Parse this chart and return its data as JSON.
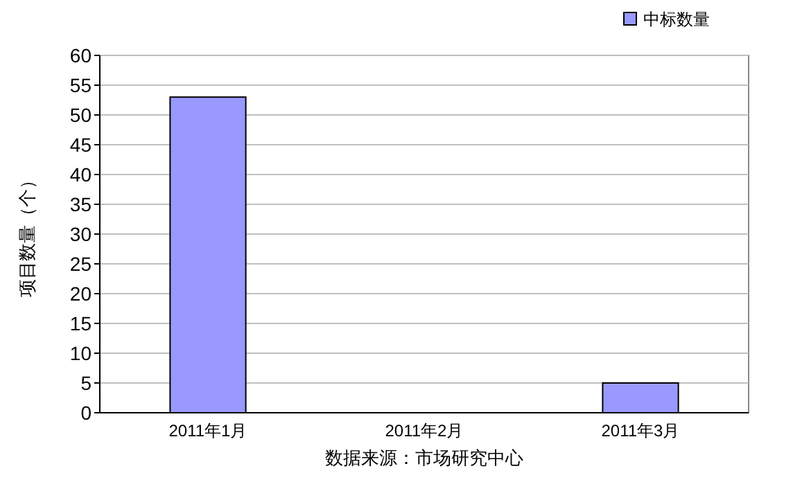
{
  "chart_data": {
    "type": "bar",
    "categories": [
      "2011年1月",
      "2011年2月",
      "2011年3月"
    ],
    "series": [
      {
        "name": "中标数量",
        "color": "#9999ff",
        "values": [
          53,
          0,
          5
        ]
      }
    ],
    "ylabel": "项目数量（个）",
    "xlabel": "数据来源：市场研究中心",
    "ylim": [
      0,
      60
    ],
    "yticks": [
      0,
      5,
      10,
      15,
      20,
      25,
      30,
      35,
      40,
      45,
      50,
      55,
      60
    ],
    "grid": "y",
    "legend": "top right"
  }
}
